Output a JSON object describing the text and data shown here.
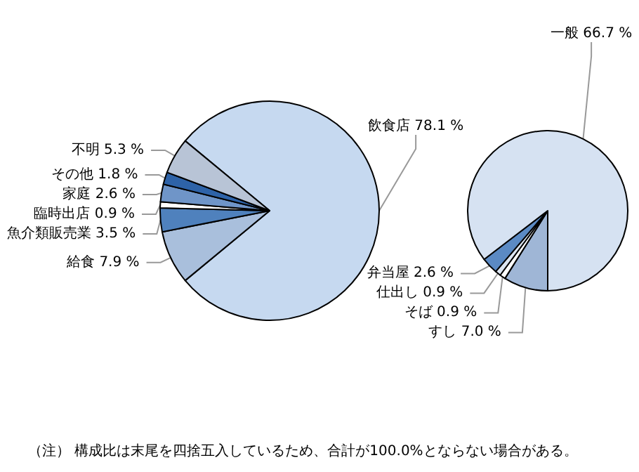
{
  "chart_data": [
    {
      "type": "pie",
      "categories": [
        "飲食店",
        "給食",
        "魚介類販売業",
        "臨時出店",
        "家庭",
        "その他",
        "不明"
      ],
      "values": [
        78.1,
        7.9,
        3.5,
        0.9,
        2.6,
        1.8,
        5.3
      ],
      "colors": [
        "#c6d9f0",
        "#a9bfdc",
        "#4f81bd",
        "#ffffff",
        "#6f95c8",
        "#2e63a8",
        "#b8c4d6"
      ],
      "value_labels": [
        "78.1 %",
        "7.9 %",
        "3.5 %",
        "0.9 %",
        "2.6 %",
        "1.8 %",
        "5.3 %"
      ],
      "annotations": [
        "（注） 構成比は末尾を四捨五入しているため、合計が100.0%とならない場合がある。"
      ]
    },
    {
      "type": "pie",
      "categories": [
        "すし",
        "そば",
        "仕出し",
        "弁当屋",
        "一般"
      ],
      "values": [
        7.0,
        0.9,
        0.9,
        2.6,
        66.7
      ],
      "colors": [
        "#9fb6d6",
        "#ffffff",
        "#dde6f2",
        "#5b8ac4",
        "#d6e2f2"
      ],
      "value_labels": [
        "7.0 %",
        "0.9 %",
        "0.9 %",
        "2.6 %",
        "66.7 %"
      ]
    }
  ]
}
